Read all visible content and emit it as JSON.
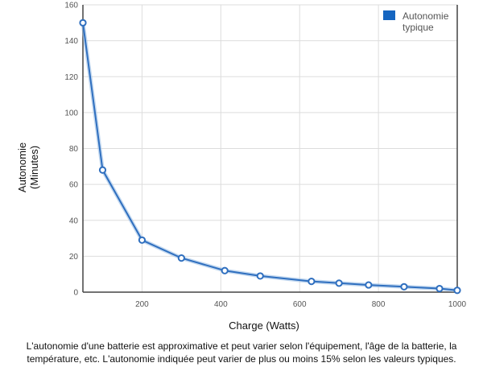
{
  "chart_data": {
    "type": "line",
    "title": "",
    "xlabel": "Charge (Watts)",
    "ylabel": "Autonomie\n(Minutes)",
    "xlim": [
      50,
      1000
    ],
    "ylim": [
      0,
      160
    ],
    "x_ticks": [
      200,
      400,
      600,
      800,
      1000
    ],
    "y_ticks": [
      0,
      20,
      40,
      60,
      80,
      100,
      120,
      140,
      160
    ],
    "grid": true,
    "legend_position": "top-right",
    "series": [
      {
        "name": "Autonomie typique",
        "legend_lines": [
          "Autonomie",
          "typique"
        ],
        "color": "#2f6fbf",
        "x": [
          50,
          100,
          200,
          300,
          410,
          500,
          630,
          700,
          775,
          865,
          955,
          1000
        ],
        "y": [
          150,
          68,
          29,
          19,
          12,
          9,
          6,
          5,
          4,
          3,
          2,
          1
        ]
      }
    ]
  },
  "footnote": "L'autonomie d'une batterie est approximative et peut varier selon l'équipement, l'âge de la batterie, la température, etc. L'autonomie indiquée peut varier de plus ou moins 15% selon les valeurs typiques."
}
